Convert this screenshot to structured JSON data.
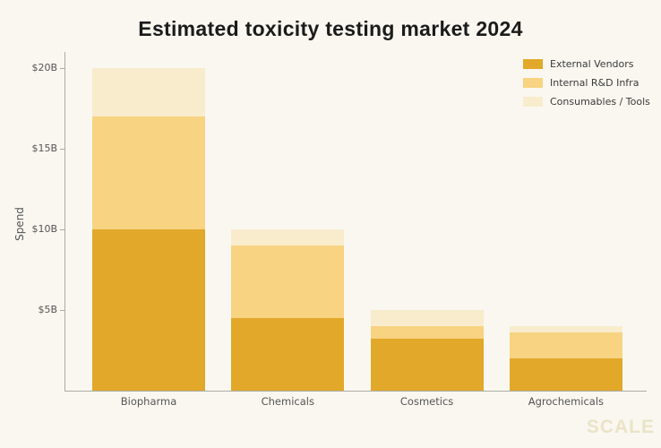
{
  "title": "Estimated toxicity testing market 2024",
  "watermark": "SCALE",
  "colors": {
    "background": "#F9F7F0",
    "axis_line": "#ABABA6",
    "tick_text": "#555555",
    "title_text": "#1B1B1B",
    "watermark_text": "#EBE3C7",
    "external_vendors": "#E2A82A",
    "internal_rd_infra": "#F7D382",
    "consumables_tools": "#F8ECCD"
  },
  "chart_data": {
    "type": "bar",
    "stacked": true,
    "title": "Estimated toxicity testing market 2024",
    "xlabel": "",
    "ylabel": "Spend",
    "categories": [
      "Biopharma",
      "Chemicals",
      "Cosmetics",
      "Agrochemicals"
    ],
    "series": [
      {
        "name": "External Vendors",
        "color": "#E2A82A",
        "values": [
          10,
          4.5,
          3.25,
          2
        ]
      },
      {
        "name": "Internal R&D Infra",
        "color": "#F7D382",
        "values": [
          7,
          4.5,
          0.75,
          1.6
        ]
      },
      {
        "name": "Consumables / Tools",
        "color": "#F8ECCD",
        "values": [
          3,
          1,
          1,
          0.4
        ]
      }
    ],
    "totals_billions": [
      20,
      10,
      5,
      4
    ],
    "unit": "USD billions",
    "ylim": [
      0,
      21
    ],
    "yticks": [
      {
        "value": 5,
        "label": "$5B"
      },
      {
        "value": 10,
        "label": "$10B"
      },
      {
        "value": 15,
        "label": "$15B"
      },
      {
        "value": 20,
        "label": "$20B"
      }
    ],
    "legend_position": "top-right",
    "grid": false
  }
}
